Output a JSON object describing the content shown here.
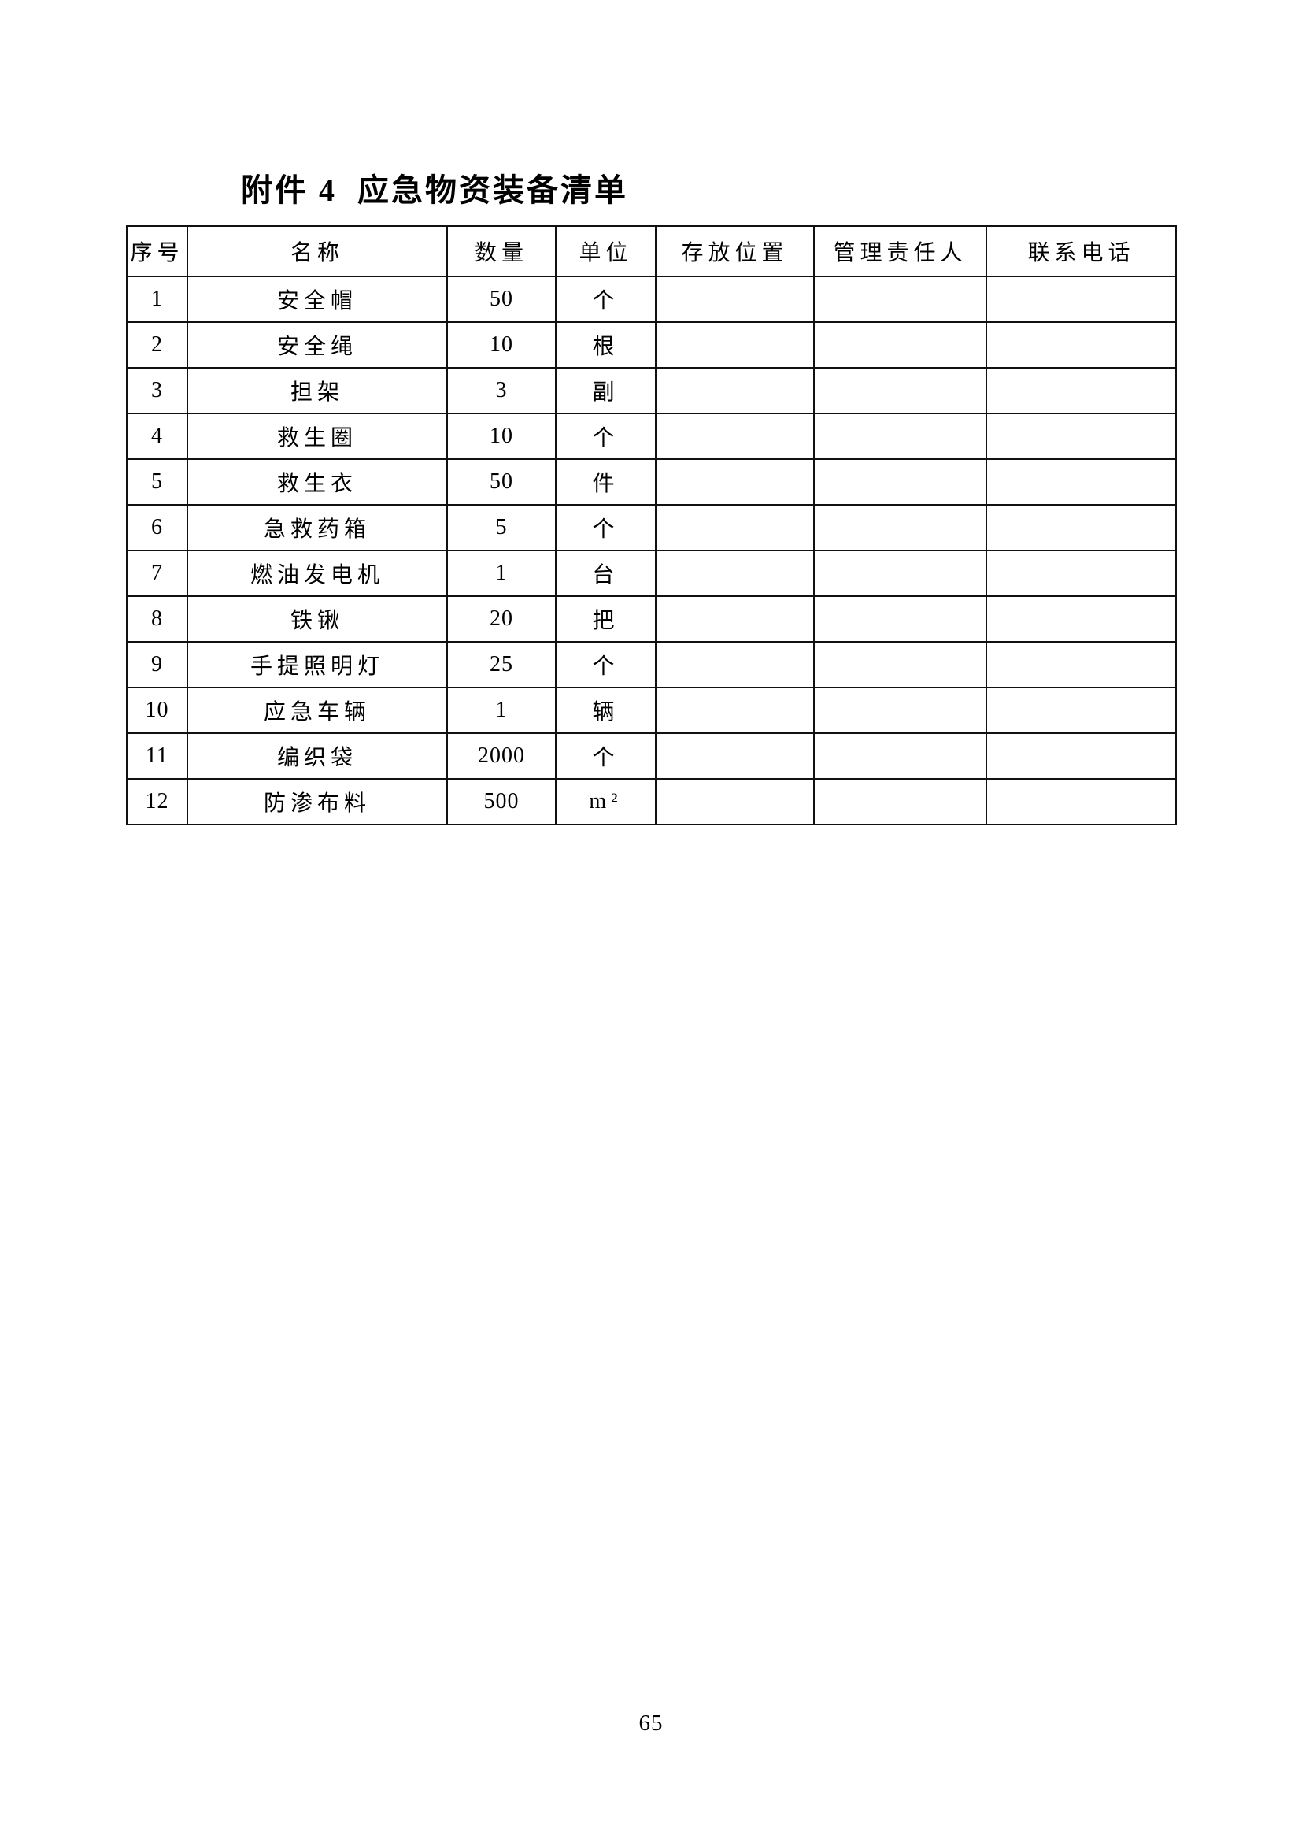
{
  "title": {
    "prefix": "附件 4",
    "text": "应急物资装备清单"
  },
  "table": {
    "headers": [
      "序号",
      "名称",
      "数量",
      "单位",
      "存放位置",
      "管理责任人",
      "联系电话"
    ],
    "rows": [
      [
        "1",
        "安全帽",
        "50",
        "个",
        "",
        "",
        ""
      ],
      [
        "2",
        "安全绳",
        "10",
        "根",
        "",
        "",
        ""
      ],
      [
        "3",
        "担架",
        "3",
        "副",
        "",
        "",
        ""
      ],
      [
        "4",
        "救生圈",
        "10",
        "个",
        "",
        "",
        ""
      ],
      [
        "5",
        "救生衣",
        "50",
        "件",
        "",
        "",
        ""
      ],
      [
        "6",
        "急救药箱",
        "5",
        "个",
        "",
        "",
        ""
      ],
      [
        "7",
        "燃油发电机",
        "1",
        "台",
        "",
        "",
        ""
      ],
      [
        "8",
        "铁锹",
        "20",
        "把",
        "",
        "",
        ""
      ],
      [
        "9",
        "手提照明灯",
        "25",
        "个",
        "",
        "",
        ""
      ],
      [
        "10",
        "应急车辆",
        "1",
        "辆",
        "",
        "",
        ""
      ],
      [
        "11",
        "编织袋",
        "2000",
        "个",
        "",
        "",
        ""
      ],
      [
        "12",
        "防渗布料",
        "500",
        "m²",
        "",
        "",
        ""
      ]
    ]
  },
  "page_number": "65"
}
